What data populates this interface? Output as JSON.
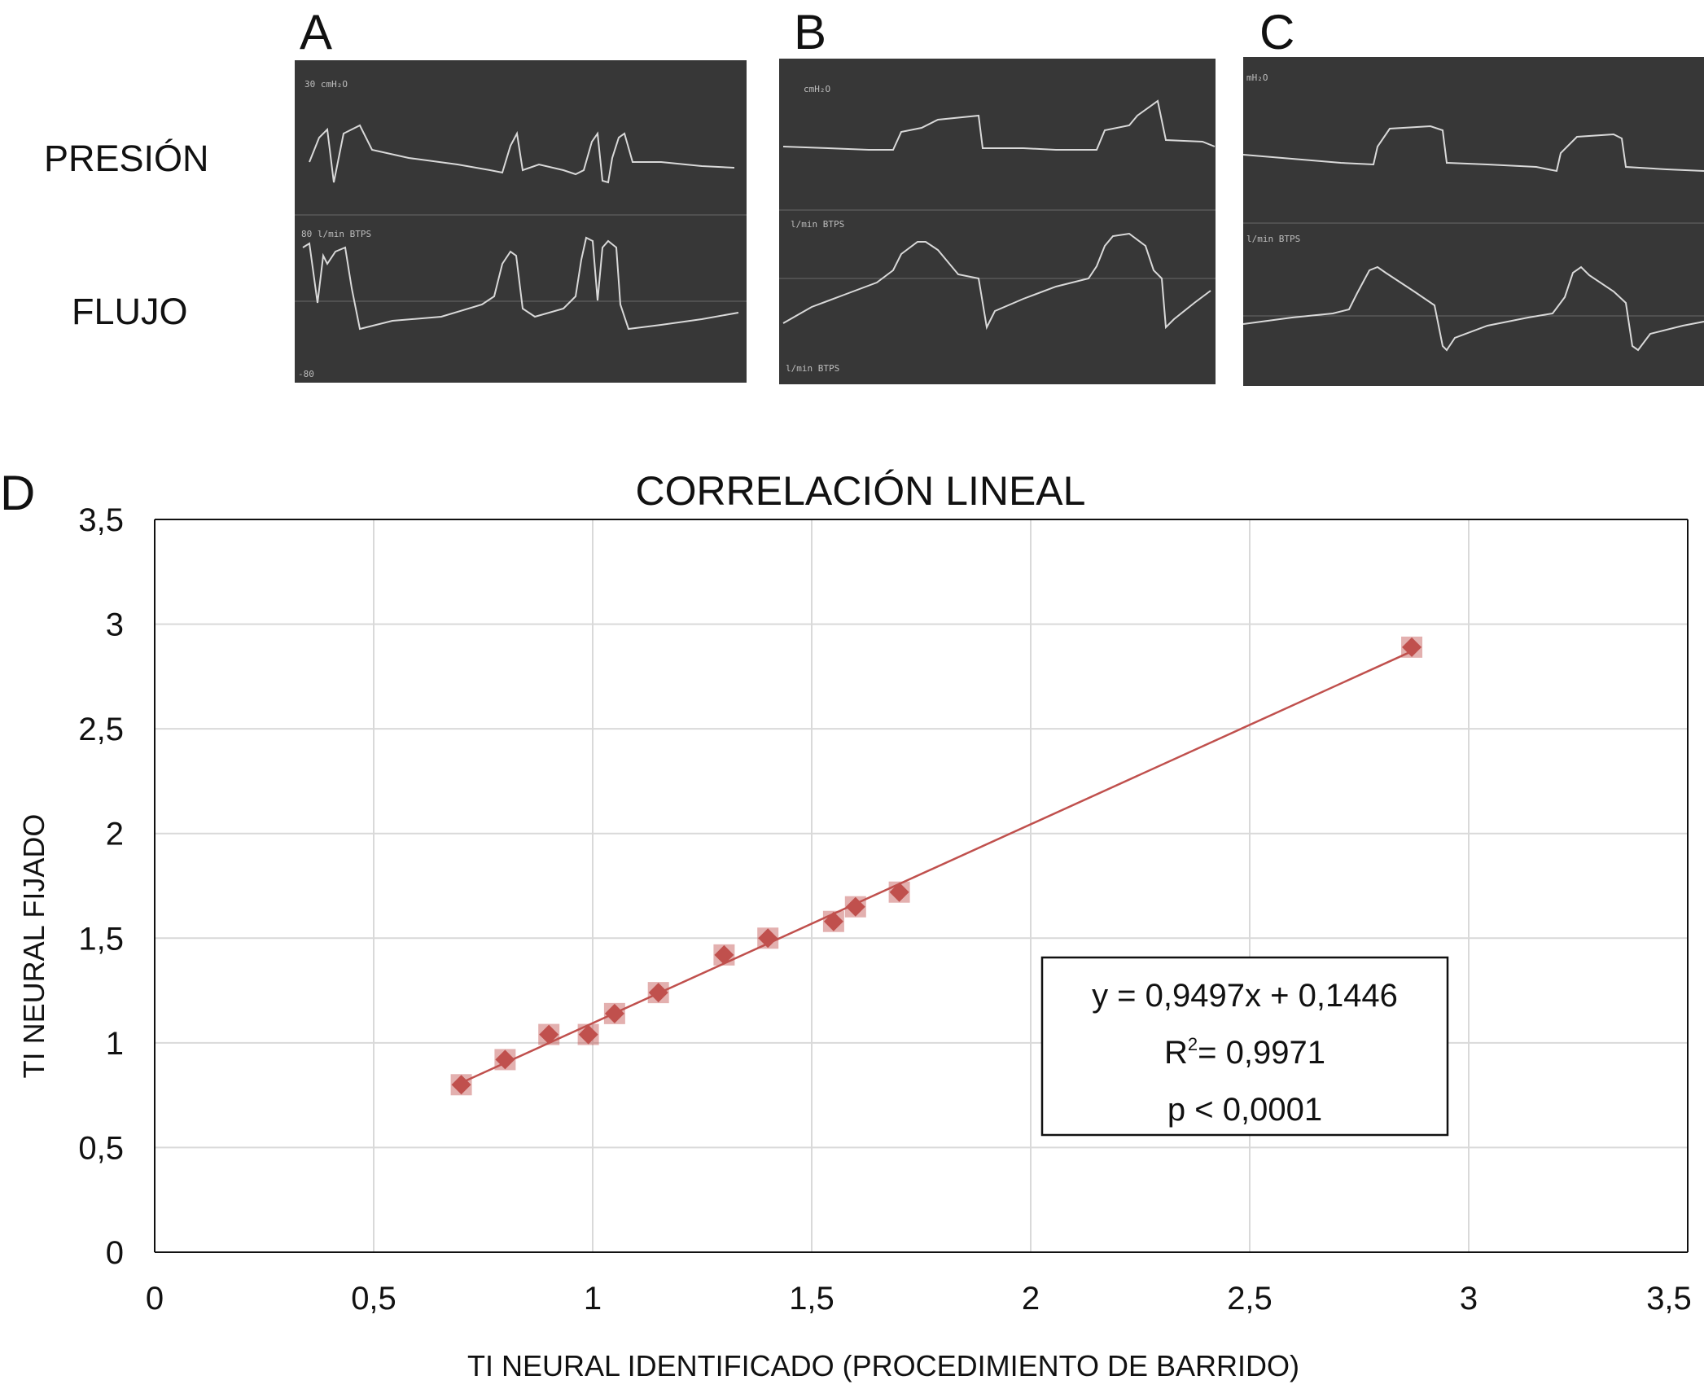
{
  "panels": {
    "a": {
      "letter": "A",
      "screen_labels": {
        "p_scale": "30   cmH₂O",
        "f_scale": "80   l/min   BTPS",
        "f_min": "-80"
      }
    },
    "b": {
      "letter": "B",
      "screen_labels": {
        "p_scale": "cmH₂O",
        "f_scale": "l/min   BTPS",
        "f_min": "l/min   BTPS"
      }
    },
    "c": {
      "letter": "C",
      "screen_labels": {
        "p_scale": "mH₂O",
        "f_scale": "l/min   BTPS"
      }
    }
  },
  "row_labels": {
    "pressure": "PRESIÓN",
    "flow": "FLUJO"
  },
  "panel_d": {
    "letter": "D",
    "equation_box": {
      "line1": "y = 0,9497x + 0,1446",
      "line2_r": "R",
      "line2_sup": "2",
      "line2_rest": "= 0,9971",
      "line3": "p < 0,0001"
    }
  },
  "colors": {
    "screen_bg": "#373737",
    "trace": "#d9d9d9",
    "marker": "#c0504d",
    "trend": "#c0504d",
    "grid": "#d9d9d9"
  },
  "chart_data": {
    "type": "scatter",
    "title": "CORRELACIÓN LINEAL",
    "xlabel": "TI NEURAL IDENTIFICADO (PROCEDIMIENTO DE BARRIDO)",
    "ylabel": "TI NEURAL FIJADO",
    "xlim": [
      0,
      3.5
    ],
    "ylim": [
      0,
      3.5
    ],
    "x_ticks": [
      0,
      0.5,
      1,
      1.5,
      2,
      2.5,
      3,
      3.5
    ],
    "y_ticks": [
      0,
      0.5,
      1,
      1.5,
      2,
      2.5,
      3,
      3.5
    ],
    "x_tick_labels": [
      "0",
      "0,5",
      "1",
      "1,5",
      "2",
      "2,5",
      "3",
      "3,5"
    ],
    "y_tick_labels": [
      "0",
      "0,5",
      "1",
      "1,5",
      "2",
      "2,5",
      "3",
      "3,5"
    ],
    "grid": true,
    "marker": "diamond",
    "points": [
      {
        "x": 0.7,
        "y": 0.8
      },
      {
        "x": 0.8,
        "y": 0.92
      },
      {
        "x": 0.9,
        "y": 1.04
      },
      {
        "x": 0.99,
        "y": 1.04
      },
      {
        "x": 1.05,
        "y": 1.14
      },
      {
        "x": 1.15,
        "y": 1.24
      },
      {
        "x": 1.3,
        "y": 1.42
      },
      {
        "x": 1.4,
        "y": 1.5
      },
      {
        "x": 1.55,
        "y": 1.58
      },
      {
        "x": 1.6,
        "y": 1.65
      },
      {
        "x": 1.7,
        "y": 1.72
      },
      {
        "x": 2.87,
        "y": 2.89
      }
    ],
    "trendline": {
      "slope": 0.9497,
      "intercept": 0.1446,
      "x_range": [
        0.7,
        2.87
      ]
    }
  }
}
